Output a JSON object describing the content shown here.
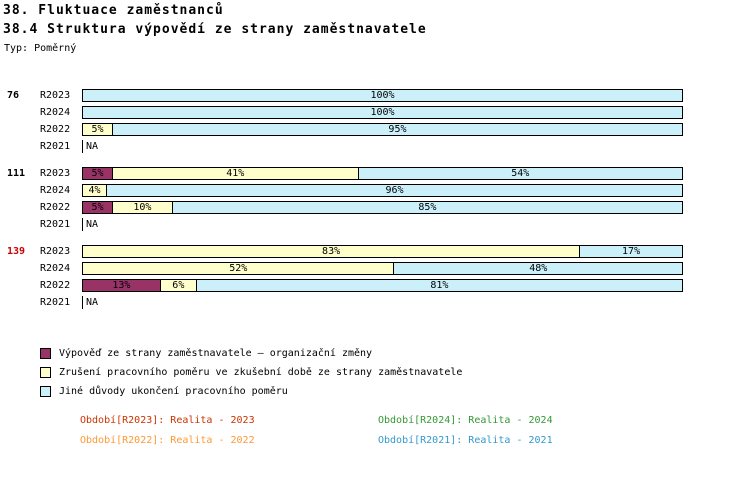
{
  "title": "38. Fluktuace zaměstnanců",
  "subtitle": "38.4 Struktura výpovědí ze strany zaměstnavatele",
  "type_label": "Typ: Poměrný",
  "colors": {
    "highlight_label": "#CC0000",
    "bar_border": "#000000"
  },
  "chart_data": {
    "type": "bar",
    "orientation": "horizontal",
    "stacked": true,
    "unit": "%",
    "xlim": [
      0,
      100
    ],
    "na_text": "NA",
    "series": [
      {
        "name": "Výpověď ze strany zaměstnavatele – organizační změny",
        "color": "#993366"
      },
      {
        "name": "Zrušení pracovního poměru ve zkušební době ze strany zaměstnavatele",
        "color": "#FFFFCC"
      },
      {
        "name": "Jiné důvody ukončení pracovního poměru",
        "color": "#CCF0FA"
      }
    ],
    "groups": [
      {
        "label": "76",
        "highlight": false,
        "rows": [
          {
            "period": "R2023",
            "values": [
              0,
              0,
              100
            ]
          },
          {
            "period": "R2024",
            "values": [
              0,
              0,
              100
            ]
          },
          {
            "period": "R2022",
            "values": [
              0,
              5,
              95
            ]
          },
          {
            "period": "R2021",
            "values": null
          }
        ]
      },
      {
        "label": "111",
        "highlight": false,
        "rows": [
          {
            "period": "R2023",
            "values": [
              5,
              41,
              54
            ]
          },
          {
            "period": "R2024",
            "values": [
              0,
              4,
              96
            ]
          },
          {
            "period": "R2022",
            "values": [
              5,
              10,
              85
            ]
          },
          {
            "period": "R2021",
            "values": null
          }
        ]
      },
      {
        "label": "139",
        "highlight": true,
        "rows": [
          {
            "period": "R2023",
            "values": [
              0,
              83,
              17
            ]
          },
          {
            "period": "R2024",
            "values": [
              0,
              52,
              48
            ]
          },
          {
            "period": "R2022",
            "values": [
              13,
              6,
              81
            ]
          },
          {
            "period": "R2021",
            "values": null
          }
        ]
      }
    ]
  },
  "legend": [
    {
      "label": "Výpověď ze strany zaměstnavatele – organizační změny",
      "color": "#993366"
    },
    {
      "label": "Zrušení pracovního poměru ve zkušební době ze strany zaměstnavatele",
      "color": "#FFFFCC"
    },
    {
      "label": "Jiné důvody ukončení pracovního poměru",
      "color": "#CCF0FA"
    }
  ],
  "period_legend": [
    {
      "text": "Období[R2023]: Realita - 2023",
      "color": "#CC3300"
    },
    {
      "text": "Období[R2024]: Realita - 2024",
      "color": "#339933"
    },
    {
      "text": "Období[R2022]: Realita - 2022",
      "color": "#FF9933"
    },
    {
      "text": "Období[R2021]: Realita - 2021",
      "color": "#3399CC"
    }
  ]
}
